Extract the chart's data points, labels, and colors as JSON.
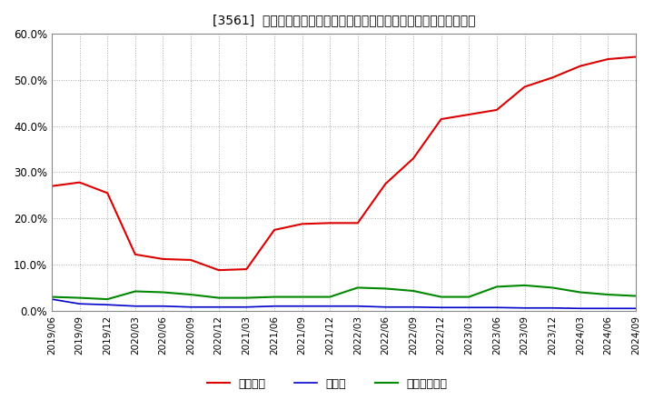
{
  "title": "[3561]  自己資本、のれん、繰延税金資産の総資産に対する比率の推移",
  "x_labels": [
    "2019/06",
    "2019/09",
    "2019/12",
    "2020/03",
    "2020/06",
    "2020/09",
    "2020/12",
    "2021/03",
    "2021/06",
    "2021/09",
    "2021/12",
    "2022/03",
    "2022/06",
    "2022/09",
    "2022/12",
    "2023/03",
    "2023/06",
    "2023/09",
    "2023/12",
    "2024/03",
    "2024/06",
    "2024/09"
  ],
  "jikoshihon": [
    27.0,
    27.8,
    25.5,
    12.2,
    11.2,
    11.0,
    8.8,
    9.0,
    17.5,
    18.8,
    19.0,
    19.0,
    27.5,
    33.0,
    41.5,
    42.5,
    43.5,
    48.5,
    50.5,
    53.0,
    54.5,
    55.0
  ],
  "noren": [
    2.5,
    1.5,
    1.3,
    1.0,
    1.0,
    0.8,
    0.8,
    0.8,
    1.0,
    1.0,
    1.0,
    1.0,
    0.8,
    0.8,
    0.7,
    0.7,
    0.7,
    0.6,
    0.6,
    0.5,
    0.5,
    0.5
  ],
  "kurinobe": [
    3.0,
    2.8,
    2.5,
    4.2,
    4.0,
    3.5,
    2.8,
    2.8,
    3.0,
    3.0,
    3.0,
    5.0,
    4.8,
    4.3,
    3.0,
    3.0,
    5.2,
    5.5,
    5.0,
    4.0,
    3.5,
    3.2
  ],
  "ylim": [
    0.0,
    60.0
  ],
  "yticks": [
    0.0,
    10.0,
    20.0,
    30.0,
    40.0,
    50.0,
    60.0
  ],
  "color_jikoshihon": "#dd0000",
  "color_noren": "#0000cc",
  "color_kurinobe": "#008800",
  "background_color": "#ffffff",
  "plot_bg_color": "#ffffff",
  "grid_color": "#aaaaaa",
  "legend_labels": [
    "自己資本",
    "のれん",
    "繰延税金資産"
  ]
}
